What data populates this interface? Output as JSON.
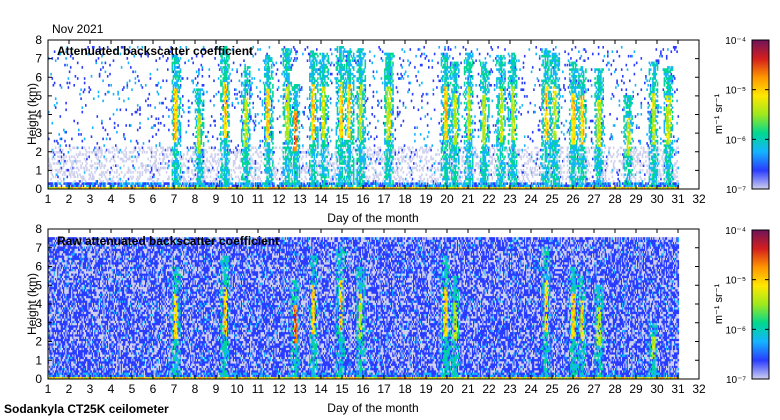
{
  "header": {
    "period": "Nov 2021"
  },
  "footer": {
    "instrument": "Sodankyla CT25K ceilometer"
  },
  "colorscale": {
    "colors": [
      "#cfd0ee",
      "#2a3cff",
      "#14b4ff",
      "#00d890",
      "#9ee81e",
      "#ffe800",
      "#ff9600",
      "#d41e1e",
      "#6e145a"
    ],
    "unit": "m⁻¹ sr⁻¹",
    "ticks": [
      "10⁻⁷",
      "10⁻⁶",
      "10⁻⁵",
      "10⁻⁴"
    ]
  },
  "chart_data": [
    {
      "type": "heatmap",
      "title": "Attenuated backscatter coefficient",
      "xlabel": "Day of the month",
      "ylabel": "Height (km)",
      "xlim": [
        1,
        32
      ],
      "ylim": [
        0,
        8
      ],
      "xticks": [
        "1",
        "2",
        "3",
        "4",
        "5",
        "6",
        "7",
        "8",
        "9",
        "10",
        "11",
        "12",
        "13",
        "14",
        "15",
        "16",
        "17",
        "18",
        "19",
        "20",
        "21",
        "22",
        "23",
        "24",
        "25",
        "26",
        "27",
        "28",
        "29",
        "30",
        "31",
        "32"
      ],
      "yticks": [
        "0",
        "1",
        "2",
        "3",
        "4",
        "5",
        "6",
        "7",
        "8"
      ],
      "color_range_log10": [
        -7,
        -4
      ],
      "data_end_day": 31,
      "cloud_columns": [
        {
          "day": 7.05,
          "top": 7.2,
          "level": 5
        },
        {
          "day": 8.15,
          "top": 5.3,
          "level": 4
        },
        {
          "day": 9.4,
          "top": 7.6,
          "level": 5
        },
        {
          "day": 10.4,
          "top": 6.5,
          "level": 4
        },
        {
          "day": 11.45,
          "top": 7.2,
          "level": 5
        },
        {
          "day": 12.35,
          "top": 7.5,
          "level": 4
        },
        {
          "day": 12.75,
          "top": 5.6,
          "level": 6
        },
        {
          "day": 13.6,
          "top": 7.4,
          "level": 5
        },
        {
          "day": 14.1,
          "top": 7.3,
          "level": 4
        },
        {
          "day": 14.9,
          "top": 7.6,
          "level": 5
        },
        {
          "day": 15.3,
          "top": 7.4,
          "level": 5
        },
        {
          "day": 15.85,
          "top": 7.5,
          "level": 4
        },
        {
          "day": 17.2,
          "top": 7.3,
          "level": 4
        },
        {
          "day": 19.9,
          "top": 7.3,
          "level": 5
        },
        {
          "day": 20.35,
          "top": 6.8,
          "level": 4
        },
        {
          "day": 21.0,
          "top": 7.3,
          "level": 4
        },
        {
          "day": 21.75,
          "top": 6.8,
          "level": 4
        },
        {
          "day": 22.55,
          "top": 7.1,
          "level": 4
        },
        {
          "day": 23.1,
          "top": 7.3,
          "level": 4
        },
        {
          "day": 24.7,
          "top": 7.5,
          "level": 5
        },
        {
          "day": 25.1,
          "top": 7.3,
          "level": 4
        },
        {
          "day": 26.0,
          "top": 6.8,
          "level": 5
        },
        {
          "day": 26.4,
          "top": 6.6,
          "level": 5
        },
        {
          "day": 27.2,
          "top": 6.4,
          "level": 4
        },
        {
          "day": 28.6,
          "top": 5.0,
          "level": 4
        },
        {
          "day": 29.8,
          "top": 6.8,
          "level": 4
        },
        {
          "day": 30.5,
          "top": 6.6,
          "level": 4
        }
      ]
    },
    {
      "type": "heatmap",
      "title": "Raw attenuated backscatter coefficient",
      "xlabel": "Day of the month",
      "ylabel": "Height (km)",
      "xlim": [
        1,
        32
      ],
      "ylim": [
        0,
        8
      ],
      "xticks": [
        "1",
        "2",
        "3",
        "4",
        "5",
        "6",
        "7",
        "8",
        "9",
        "10",
        "11",
        "12",
        "13",
        "14",
        "15",
        "16",
        "17",
        "18",
        "19",
        "20",
        "21",
        "22",
        "23",
        "24",
        "25",
        "26",
        "27",
        "28",
        "29",
        "30",
        "31",
        "32"
      ],
      "yticks": [
        "0",
        "1",
        "2",
        "3",
        "4",
        "5",
        "6",
        "7",
        "8"
      ],
      "color_range_log10": [
        -7,
        -4
      ],
      "data_end_day": 31,
      "noise_top_km": 7.5,
      "cloud_columns": [
        {
          "day": 7.05,
          "top": 6.0,
          "level": 5
        },
        {
          "day": 9.4,
          "top": 6.5,
          "level": 5
        },
        {
          "day": 12.75,
          "top": 5.2,
          "level": 6
        },
        {
          "day": 13.6,
          "top": 6.6,
          "level": 5
        },
        {
          "day": 14.9,
          "top": 7.0,
          "level": 5
        },
        {
          "day": 15.85,
          "top": 6.0,
          "level": 4
        },
        {
          "day": 19.9,
          "top": 6.5,
          "level": 5
        },
        {
          "day": 20.35,
          "top": 5.5,
          "level": 4
        },
        {
          "day": 24.7,
          "top": 7.0,
          "level": 5
        },
        {
          "day": 26.0,
          "top": 6.0,
          "level": 5
        },
        {
          "day": 26.4,
          "top": 5.5,
          "level": 5
        },
        {
          "day": 27.2,
          "top": 5.0,
          "level": 4
        },
        {
          "day": 29.8,
          "top": 3.0,
          "level": 4
        }
      ]
    }
  ]
}
